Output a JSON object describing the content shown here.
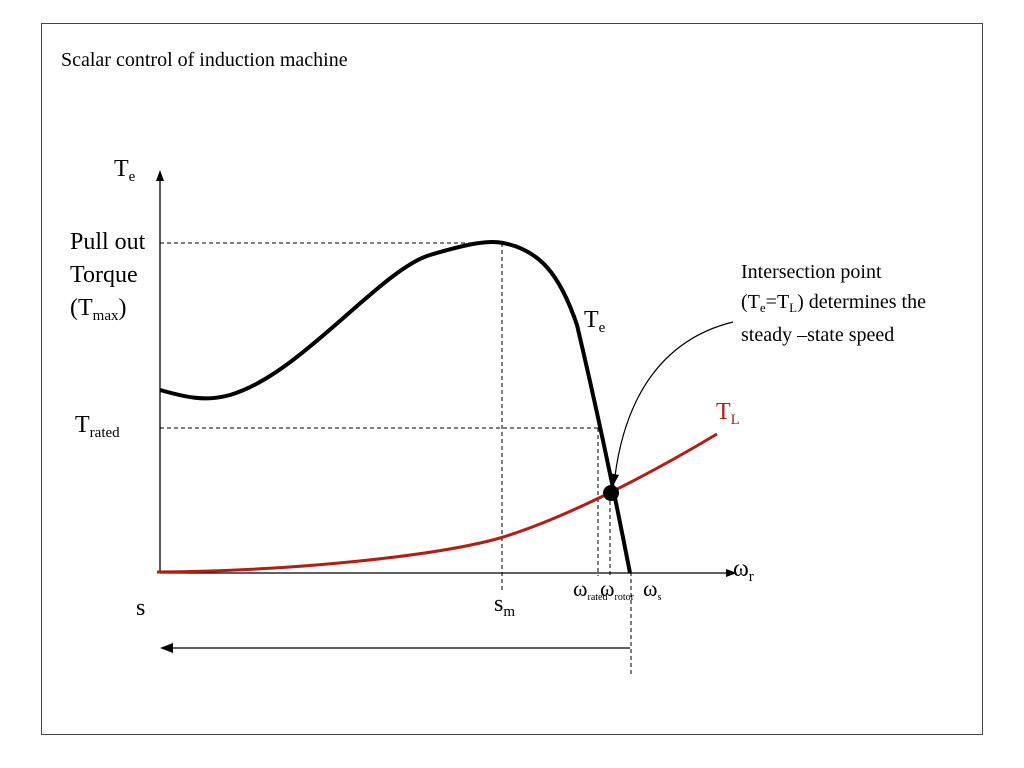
{
  "slide": {
    "title": "Scalar control of induction machine"
  },
  "diagram": {
    "y_axis_label": {
      "main": "T",
      "sub": "e"
    },
    "x_axis_label": {
      "main": "ω",
      "sub": "r"
    },
    "pullout": {
      "line1": "Pull out",
      "line2": "Torque",
      "line3_pre": "(T",
      "line3_sub": "max",
      "line3_post": ")"
    },
    "rated": {
      "main": "T",
      "sub": "rated"
    },
    "te_curve_label": {
      "main": "T",
      "sub": "e"
    },
    "tl_curve_label": {
      "main": "T",
      "sub": "L"
    },
    "s_label": "s",
    "sm_label": {
      "main": "s",
      "sub": "m"
    },
    "omega_rated": {
      "main": "ω",
      "sub": "rated"
    },
    "omega_rotor": {
      "main": "ω",
      "sub": "rotor"
    },
    "omega_s": {
      "main": "ω",
      "sub": "s"
    },
    "annotation": {
      "line1": "Intersection point",
      "line2_a": "(T",
      "line2_b": "e",
      "line2_c": "=T",
      "line2_d": "L",
      "line2_e": ") determines the",
      "line3": "steady –state speed"
    },
    "colors": {
      "torque_curve": "#000000",
      "load_curve": "#b01e14"
    }
  }
}
